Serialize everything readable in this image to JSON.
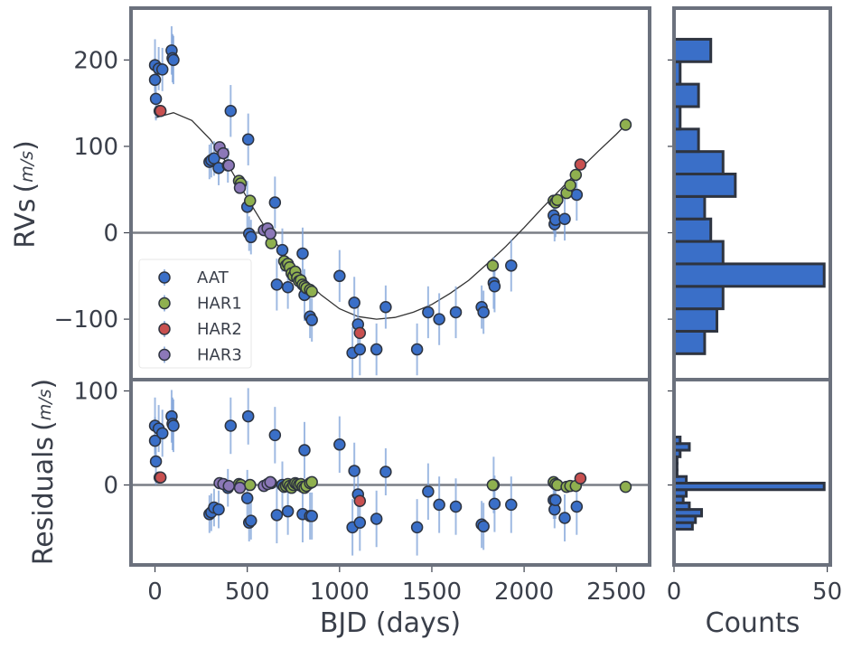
{
  "chart_data": {
    "type": "scatter",
    "xlabel": "BJD (days)",
    "xlim": [
      -130,
      2680
    ],
    "xticks": [
      0,
      500,
      1000,
      1500,
      2000,
      2500
    ],
    "xtick_labels": [
      "0",
      "500",
      "1000",
      "1500",
      "2000",
      "2500"
    ],
    "top_panel": {
      "ylabel": "RVs",
      "ylabel_unit": "m/s",
      "ylim": [
        -170,
        260
      ],
      "yticks": [
        200,
        100,
        0,
        -100
      ],
      "ytick_labels": [
        "200",
        "100",
        "0",
        "−100"
      ]
    },
    "residual_panel": {
      "ylabel": "Residuals",
      "ylabel_unit": "m/s",
      "ylim": [
        -85,
        112
      ],
      "yticks": [
        100,
        0
      ],
      "ytick_labels": [
        "100",
        "0"
      ]
    },
    "legend": {
      "position": "lower-left",
      "entries": [
        "AAT",
        "HAR1",
        "HAR2",
        "HAR3"
      ]
    },
    "series": [
      {
        "name": "AAT",
        "color": "#3a6fc8",
        "x": [
          0,
          0,
          5,
          20,
          40,
          90,
          95,
          100,
          295,
          305,
          320,
          345,
          395,
          410,
          500,
          505,
          510,
          520,
          650,
          660,
          690,
          720,
          800,
          810,
          840,
          850,
          1000,
          1070,
          1080,
          1100,
          1110,
          1200,
          1250,
          1420,
          1480,
          1540,
          1630,
          1770,
          1780,
          1835,
          1840,
          1930,
          2160,
          2165,
          2170,
          2220,
          2285
        ],
        "y": [
          194,
          177,
          155,
          190,
          189,
          211,
          202,
          200,
          82,
          84,
          86,
          75,
          78,
          141,
          30,
          108,
          -1,
          -5,
          35,
          -60,
          -20,
          -63,
          -24,
          -72,
          -97,
          -101,
          -50,
          -139,
          -81,
          -106,
          -135,
          -135,
          -86,
          -135,
          -92,
          -100,
          -92,
          -86,
          -92,
          -58,
          -62,
          -38,
          20,
          10,
          15,
          16,
          44
        ],
        "yerr": [
          30,
          25,
          25,
          25,
          25,
          28,
          28,
          28,
          20,
          20,
          20,
          20,
          20,
          30,
          30,
          30,
          20,
          20,
          30,
          30,
          25,
          25,
          30,
          30,
          25,
          25,
          30,
          30,
          30,
          30,
          30,
          30,
          25,
          30,
          30,
          30,
          30,
          25,
          25,
          30,
          30,
          30,
          20,
          20,
          20,
          25,
          30
        ],
        "residuals": [
          63,
          47,
          25,
          60,
          55,
          73,
          65,
          63,
          -31,
          -29,
          -24,
          -26,
          -3,
          63,
          -14,
          73,
          -40,
          -38,
          53,
          -32,
          0,
          -28,
          -31,
          37,
          -33,
          -33,
          43,
          -45,
          15,
          -10,
          -40,
          -36,
          14,
          -45,
          -7,
          -21,
          -23,
          -42,
          -44,
          0,
          -20,
          -21,
          -16,
          -26,
          -16,
          -35,
          -23
        ],
        "res_err": [
          30,
          25,
          25,
          25,
          25,
          28,
          28,
          28,
          20,
          20,
          20,
          20,
          20,
          30,
          30,
          30,
          20,
          20,
          30,
          30,
          25,
          25,
          30,
          30,
          25,
          25,
          30,
          30,
          30,
          30,
          30,
          30,
          25,
          30,
          30,
          30,
          30,
          25,
          25,
          30,
          30,
          30,
          20,
          20,
          20,
          25,
          30
        ]
      },
      {
        "name": "HAR1",
        "color": "#8fb04f",
        "x": [
          455,
          465,
          515,
          630,
          700,
          710,
          720,
          730,
          740,
          750,
          760,
          770,
          780,
          790,
          800,
          810,
          820,
          840,
          850,
          1830,
          2160,
          2170,
          2180,
          2230,
          2250,
          2280,
          2550
        ],
        "y": [
          60,
          57,
          37,
          -12,
          -33,
          -38,
          -36,
          -40,
          -47,
          -50,
          -45,
          -52,
          -56,
          -55,
          -60,
          -62,
          -64,
          -66,
          -68,
          -38,
          37,
          35,
          38,
          46,
          55,
          67,
          125
        ],
        "yerr": [
          4,
          4,
          4,
          4,
          4,
          4,
          4,
          4,
          4,
          4,
          4,
          4,
          4,
          4,
          4,
          4,
          4,
          4,
          4,
          4,
          4,
          4,
          4,
          4,
          4,
          4,
          4
        ],
        "residuals": [
          1,
          0,
          0,
          2,
          -2,
          -1,
          1,
          -1,
          -3,
          0,
          2,
          1,
          0,
          1,
          -2,
          -3,
          -1,
          2,
          3,
          0,
          3,
          1,
          0,
          -2,
          -1,
          -1,
          -2
        ],
        "res_err": [
          4,
          4,
          4,
          4,
          4,
          4,
          4,
          4,
          4,
          4,
          4,
          4,
          4,
          4,
          4,
          4,
          4,
          4,
          4,
          4,
          4,
          4,
          4,
          4,
          4,
          4,
          4
        ]
      },
      {
        "name": "HAR2",
        "color": "#c85050",
        "x": [
          25,
          30,
          1110,
          2305
        ],
        "y": [
          141,
          141,
          -116,
          79
        ],
        "yerr": [
          4,
          4,
          4,
          4
        ],
        "residuals": [
          8,
          8,
          -17,
          7
        ],
        "res_err": [
          4,
          4,
          4,
          4
        ]
      },
      {
        "name": "HAR3",
        "color": "#8c78b8",
        "x": [
          350,
          370,
          400,
          460,
          590,
          610,
          625
        ],
        "y": [
          99,
          92,
          78,
          52,
          3,
          5,
          -1
        ],
        "yerr": [
          4,
          4,
          4,
          4,
          4,
          4,
          4
        ],
        "residuals": [
          2,
          1,
          -1,
          -3,
          -1,
          1,
          3
        ],
        "res_err": [
          4,
          4,
          4,
          4,
          4,
          4,
          4
        ]
      }
    ],
    "model_curve": {
      "x": [
        0,
        100,
        200,
        300,
        400,
        500,
        600,
        700,
        800,
        900,
        1000,
        1100,
        1200,
        1300,
        1400,
        1500,
        1600,
        1700,
        1800,
        1900,
        2000,
        2100,
        2200,
        2300,
        2400,
        2500,
        2550
      ],
      "y": [
        133,
        139,
        130,
        108,
        77,
        40,
        5,
        -25,
        -52,
        -72,
        -88,
        -97,
        -100,
        -98,
        -92,
        -83,
        -70,
        -55,
        -36,
        -16,
        6,
        29,
        51,
        73,
        94,
        114,
        125
      ]
    },
    "histograms": {
      "xlabel": "Counts",
      "xlim": [
        0,
        51
      ],
      "xticks": [
        0,
        50
      ],
      "xtick_labels": [
        "0",
        "50"
      ],
      "top": {
        "bin_edges": [
          -140,
          -114,
          -88,
          -62,
          -36,
          -10,
          16,
          42,
          68,
          94,
          120,
          146,
          172,
          198,
          224
        ],
        "counts": [
          10,
          14,
          16,
          49,
          16,
          12,
          10,
          20,
          16,
          8,
          2,
          8,
          2,
          12
        ]
      },
      "residual": {
        "bin_edges": [
          -47,
          -40,
          -33,
          -26,
          -19,
          -12,
          -5,
          2,
          9,
          16,
          23,
          30,
          37,
          44,
          51,
          58,
          65,
          72
        ],
        "counts": [
          6,
          7,
          9,
          5,
          3,
          4,
          49,
          4,
          1,
          1,
          1,
          2,
          5,
          2,
          0,
          0,
          0
        ]
      }
    }
  }
}
